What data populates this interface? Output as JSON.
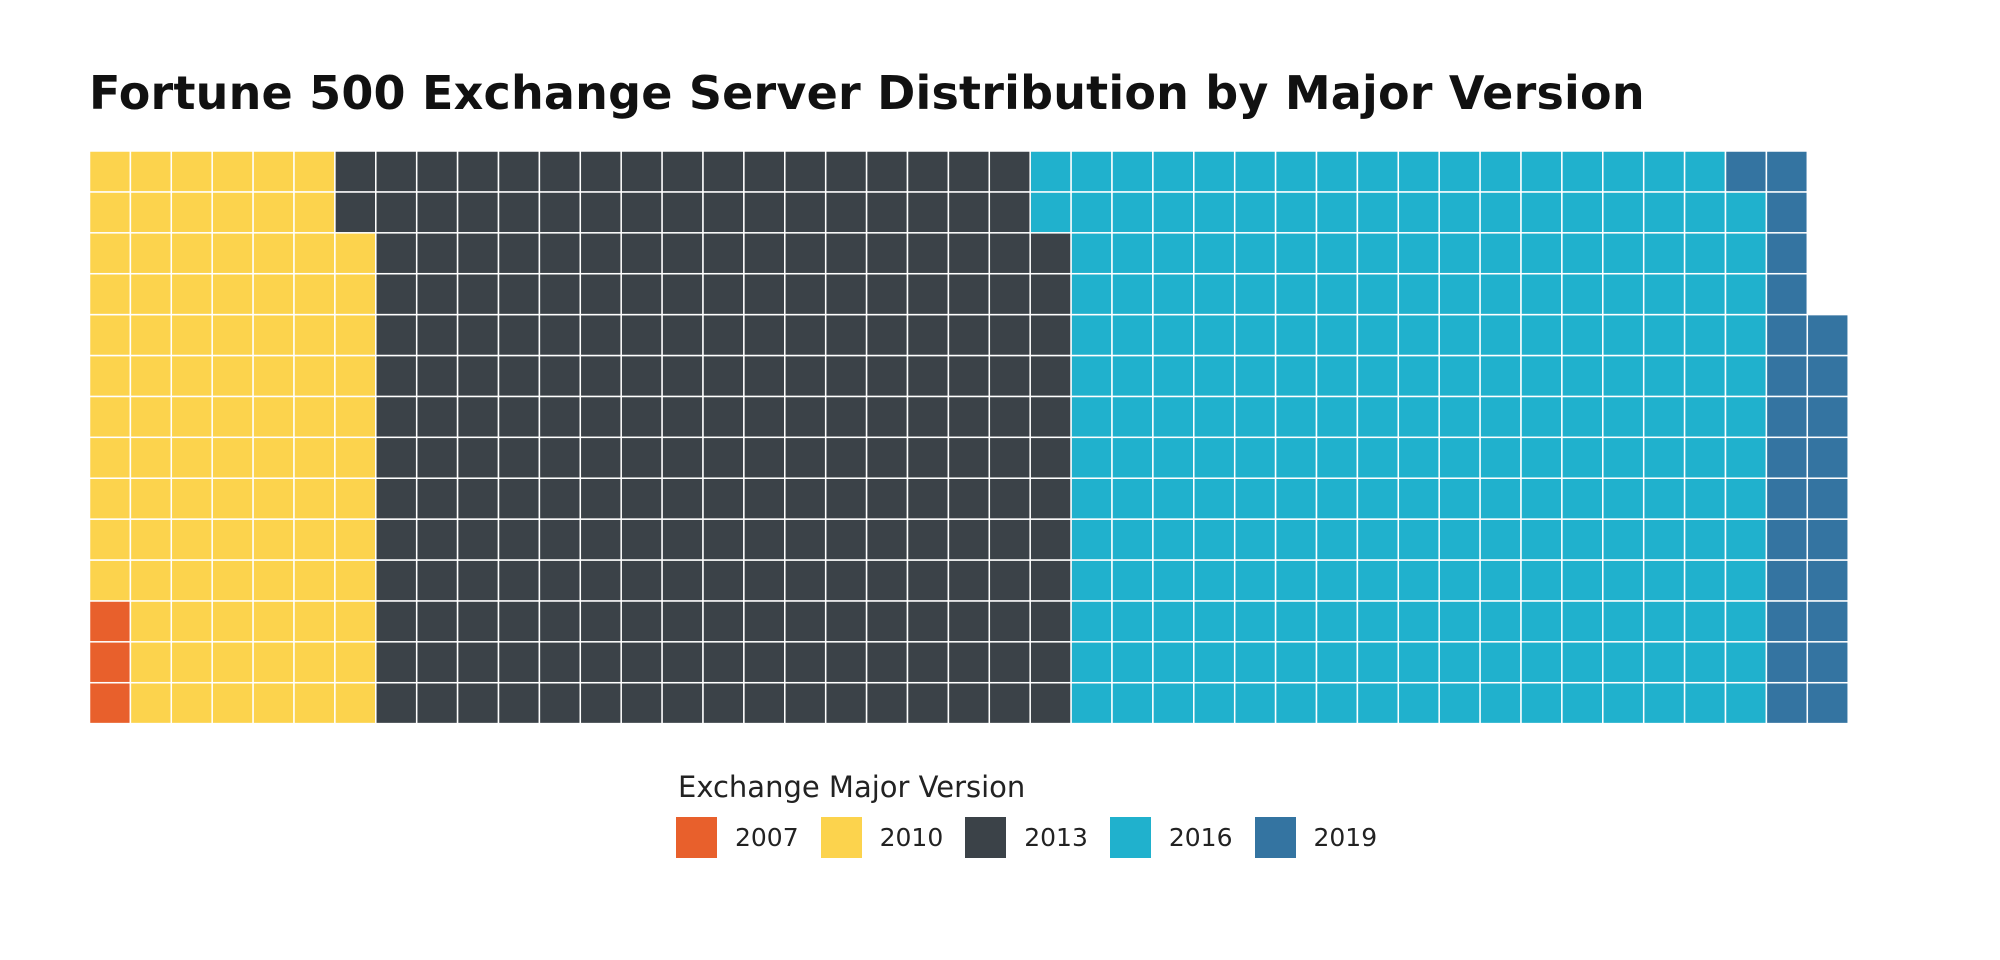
{
  "chart_data": {
    "type": "waffle",
    "title": "Fortune 500 Exchange Server Distribution by Major Version",
    "grid": {
      "rows": 14,
      "fill_order": "column-wise, bottom-to-top, left-to-right"
    },
    "legend": {
      "title": "Exchange Major Version",
      "placement": "bottom-center"
    },
    "categories": [
      "2007",
      "2010",
      "2013",
      "2016",
      "2019"
    ],
    "values": [
      3,
      93,
      238,
      239,
      25
    ],
    "colors": [
      "#E8602C",
      "#FCD34D",
      "#3B4248",
      "#20B1CD",
      "#3474A1"
    ]
  }
}
